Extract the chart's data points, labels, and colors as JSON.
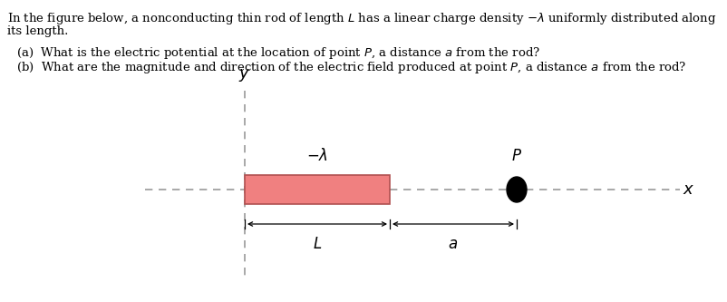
{
  "background_color": "#ffffff",
  "rod_color": "#f08080",
  "rod_edge_color": "#b05050",
  "dashed_line_color": "#999999",
  "arrow_color": "#333333",
  "font_size_text": 9.5,
  "font_size_labels": 12,
  "font_size_axis": 13,
  "text_line1": "In the figure below, a nonconducting thin rod of length $L$ has a linear charge density $-\\lambda$ uniformly distributed along",
  "text_line2": "its length.",
  "text_qa": "(a)  What is the electric potential at the location of point $P$, a distance $a$ from the rod?",
  "text_qb": "(b)  What are the magnitude and direction of the electric field produced at point $P$, a distance $a$ from the rod?"
}
